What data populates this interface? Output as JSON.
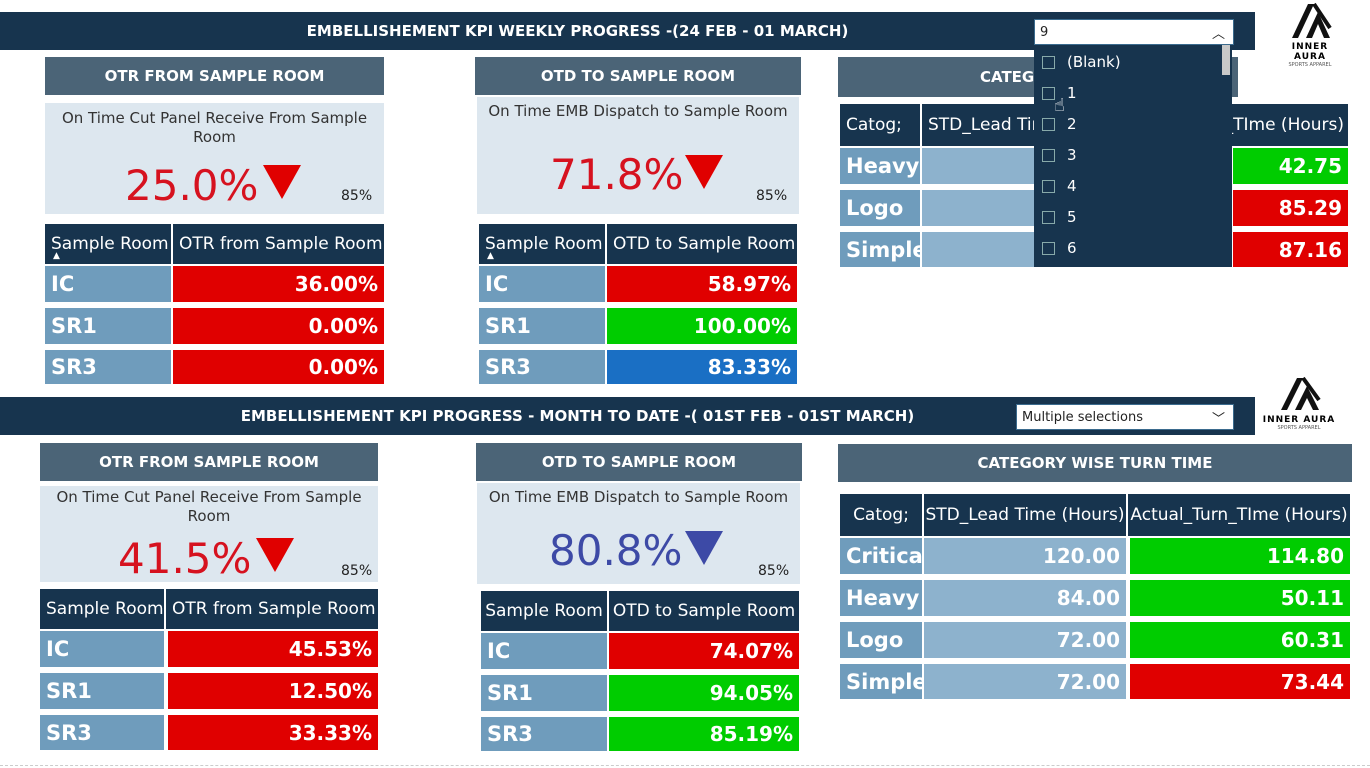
{
  "colors": {
    "banner": "#17344e",
    "panel_title": "#4b6477",
    "kpi_bg": "#dde7ef",
    "red": "#e00000",
    "green": "#00cc00",
    "blue": "#1a6fc4",
    "label_cell": "#6f9cbc",
    "num_cell": "#8db2cd",
    "kpi_red_text": "#d6121f",
    "kpi_blue_text": "#3d4aa6"
  },
  "weekly": {
    "banner": "EMBELLISHEMENT KPI  WEEKLY PROGRESS -(24 FEB - 01 MARCH)",
    "slicer_value": "9",
    "dropdown_items": [
      "(Blank)",
      "1",
      "2",
      "3",
      "4",
      "5",
      "6"
    ],
    "otr": {
      "title": "OTR FROM SAMPLE ROOM",
      "kpi_label": "On Time Cut Panel Receive From Sample Room",
      "value": "25.0%",
      "target": "85%",
      "col1": "Sample Room",
      "col2": "OTR from Sample Room",
      "rows": [
        {
          "name": "IC",
          "val": "36.00%"
        },
        {
          "name": "SR1",
          "val": "0.00%"
        },
        {
          "name": "SR3",
          "val": "0.00%"
        }
      ]
    },
    "otd": {
      "title": "OTD TO SAMPLE ROOM",
      "kpi_label": "On Time EMB Dispatch to Sample Room",
      "value": "71.8%",
      "target": "85%",
      "col1": "Sample Room",
      "col2": "OTD to Sample Room",
      "rows": [
        {
          "name": "IC",
          "val": "58.97%"
        },
        {
          "name": "SR1",
          "val": "100.00%"
        },
        {
          "name": "SR3",
          "val": "83.33%"
        }
      ]
    },
    "category": {
      "title_visible": "CATEG",
      "col1": "Catog;",
      "col2_visible": "STD_Lead Tim",
      "col3_visible": "_TIme (Hours)",
      "rows": [
        {
          "name": "Heavy",
          "actual": "42.75"
        },
        {
          "name": "Logo",
          "actual": "85.29"
        },
        {
          "name": "Simple",
          "actual": "87.16"
        }
      ]
    }
  },
  "monthly": {
    "banner": "EMBELLISHEMENT KPI  PROGRESS - MONTH TO DATE -( 01ST FEB - 01ST MARCH)",
    "slicer_value": "Multiple selections",
    "otr": {
      "title": "OTR FROM SAMPLE ROOM",
      "kpi_label": "On Time Cut Panel Receive From Sample Room",
      "value": "41.5%",
      "target": "85%",
      "col1": "Sample Room",
      "col2": "OTR from Sample Room",
      "rows": [
        {
          "name": "IC",
          "val": "45.53%"
        },
        {
          "name": "SR1",
          "val": "12.50%"
        },
        {
          "name": "SR3",
          "val": "33.33%"
        }
      ]
    },
    "otd": {
      "title": "OTD TO SAMPLE ROOM",
      "kpi_label": "On Time EMB Dispatch to Sample Room",
      "value": "80.8%",
      "target": "85%",
      "col1": "Sample Room",
      "col2": "OTD to Sample Room",
      "rows": [
        {
          "name": "IC",
          "val": "74.07%"
        },
        {
          "name": "SR1",
          "val": "94.05%"
        },
        {
          "name": "SR3",
          "val": "85.19%"
        }
      ]
    },
    "category": {
      "title": "CATEGORY WISE TURN TIME",
      "col1": "Catog;",
      "col2": "STD_Lead Time (Hours)",
      "col3": "Actual_Turn_TIme (Hours)",
      "rows": [
        {
          "name": "Critical",
          "std": "120.00",
          "actual": "114.80"
        },
        {
          "name": "Heavy",
          "std": "84.00",
          "actual": "50.11"
        },
        {
          "name": "Logo",
          "std": "72.00",
          "actual": "60.31"
        },
        {
          "name": "Simple",
          "std": "72.00",
          "actual": "73.44"
        }
      ]
    }
  },
  "logo": {
    "brand": "INNER AURA",
    "tagline": "SPORTS APPAREL"
  }
}
